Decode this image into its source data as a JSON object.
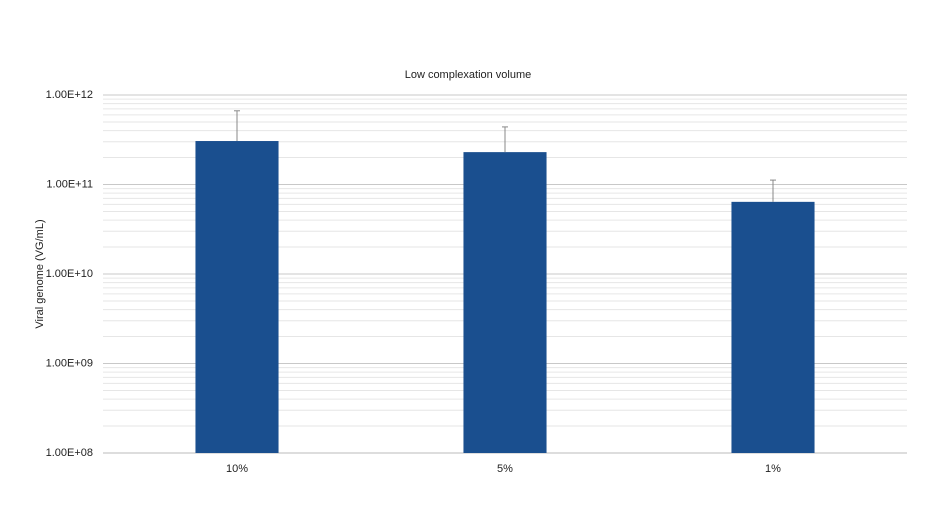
{
  "chart_data": {
    "type": "bar",
    "title": "Low complexation volume",
    "y_label": "Viral genome (VG/mL)",
    "categories": [
      "10%",
      "5%",
      "1%"
    ],
    "values": [
      306000000000,
      230000000000,
      64000000000
    ],
    "errors": [
      360000000000,
      210000000000,
      48000000000
    ],
    "color": "#1a4f8f",
    "log_scale": true,
    "grid": true,
    "minor_grid": true,
    "ylim": [
      100000000,
      1000000000000
    ],
    "yticks": [
      {
        "value": 100000000,
        "label": "1.00E+08"
      },
      {
        "value": 1000000000,
        "label": "1.00E+09"
      },
      {
        "value": 10000000000,
        "label": "1.00E+10"
      },
      {
        "value": 100000000000,
        "label": "1.00E+11"
      },
      {
        "value": 1000000000000,
        "label": "1.00E+12"
      }
    ]
  }
}
